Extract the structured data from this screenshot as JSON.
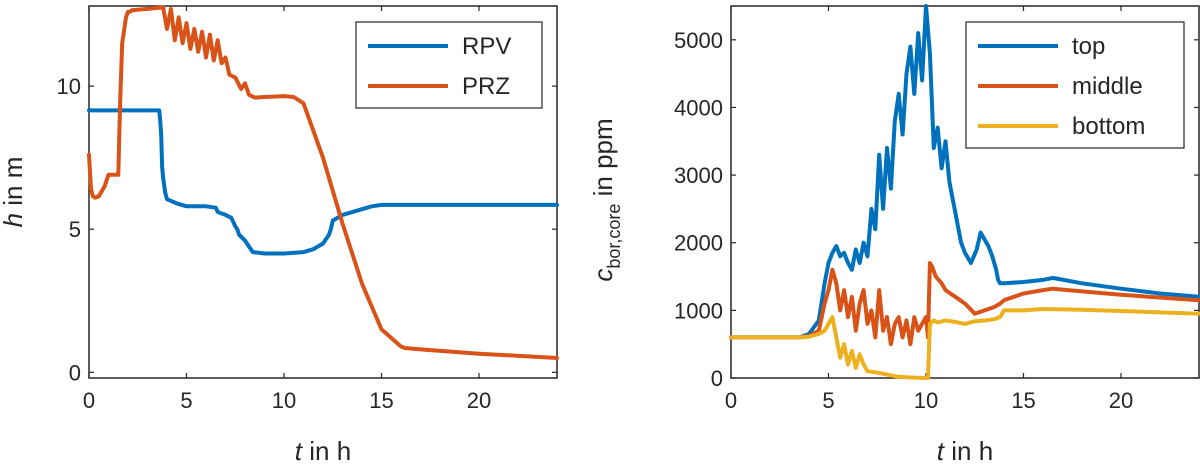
{
  "chart_data": [
    {
      "type": "line",
      "xlabel_italic": "t",
      "xlabel_rest": " in h",
      "ylabel_italic": "h",
      "ylabel_rest": " in m",
      "xlim": [
        0,
        24
      ],
      "ylim": [
        -0.2,
        12.8
      ],
      "xticks": [
        0,
        5,
        10,
        15,
        20
      ],
      "yticks": [
        0,
        5,
        10
      ],
      "legend": "top-right",
      "series": [
        {
          "name": "RPV",
          "color": "#0072BD",
          "x": [
            0,
            3.6,
            3.65,
            3.7,
            3.75,
            3.8,
            3.9,
            4.0,
            4.5,
            5.0,
            6.0,
            6.5,
            6.6,
            7.0,
            7.3,
            7.5,
            7.6,
            7.7,
            8.0,
            8.2,
            8.4,
            9.0,
            10.0,
            11.0,
            11.5,
            12.0,
            12.3,
            12.4,
            12.5,
            13.0,
            14.0,
            14.5,
            15.0,
            20.0,
            24.0
          ],
          "y": [
            9.15,
            9.15,
            8.8,
            8.3,
            7.2,
            6.8,
            6.3,
            6.05,
            5.9,
            5.8,
            5.8,
            5.75,
            5.6,
            5.5,
            5.4,
            5.1,
            5.0,
            4.8,
            4.6,
            4.4,
            4.2,
            4.15,
            4.15,
            4.2,
            4.3,
            4.5,
            4.8,
            5.0,
            5.3,
            5.5,
            5.7,
            5.8,
            5.85,
            5.85,
            5.85
          ]
        },
        {
          "name": "PRZ",
          "color": "#D95319",
          "x": [
            0,
            0.1,
            0.2,
            0.3,
            0.5,
            0.8,
            1.0,
            1.2,
            1.5,
            1.6,
            1.7,
            1.9,
            2.0,
            2.1,
            2.2,
            3.0,
            3.8,
            4.0,
            4.2,
            4.4,
            4.6,
            4.8,
            5.0,
            5.2,
            5.4,
            5.6,
            5.8,
            6.0,
            6.2,
            6.4,
            6.6,
            6.8,
            7.0,
            7.2,
            7.5,
            7.8,
            8.0,
            8.2,
            8.5,
            9.0,
            10.0,
            10.5,
            11.0,
            12.0,
            13.0,
            14.0,
            15.0,
            16.0,
            16.2,
            17.0,
            20.0,
            24.0
          ],
          "y": [
            7.6,
            6.4,
            6.15,
            6.1,
            6.15,
            6.5,
            6.9,
            6.9,
            6.9,
            9.5,
            11.5,
            12.4,
            12.6,
            12.6,
            12.65,
            12.7,
            12.75,
            12.0,
            12.7,
            11.6,
            12.4,
            11.5,
            12.2,
            11.3,
            12.0,
            11.2,
            11.9,
            11.0,
            11.8,
            10.9,
            11.6,
            10.8,
            11.0,
            10.4,
            10.3,
            9.9,
            10.1,
            9.7,
            9.6,
            9.62,
            9.65,
            9.62,
            9.4,
            7.5,
            5.2,
            3.1,
            1.5,
            0.9,
            0.85,
            0.8,
            0.65,
            0.5
          ]
        }
      ]
    },
    {
      "type": "line",
      "xlabel_italic": "t",
      "xlabel_rest": " in h",
      "ylabel_italic": "c",
      "ylabel_sub": "bor,core",
      "ylabel_rest": " in ppm",
      "xlim": [
        0,
        24
      ],
      "ylim": [
        0,
        5500
      ],
      "xticks": [
        0,
        5,
        10,
        15,
        20
      ],
      "yticks": [
        0,
        1000,
        2000,
        3000,
        4000,
        5000
      ],
      "legend": "top-right",
      "series": [
        {
          "name": "top",
          "color": "#0072BD",
          "x": [
            0,
            3.5,
            4.0,
            4.5,
            4.8,
            5.0,
            5.2,
            5.4,
            5.6,
            5.8,
            6.0,
            6.2,
            6.4,
            6.6,
            6.8,
            7.0,
            7.2,
            7.4,
            7.6,
            7.8,
            8.0,
            8.2,
            8.4,
            8.6,
            8.8,
            9.0,
            9.2,
            9.4,
            9.6,
            9.8,
            10.0,
            10.2,
            10.4,
            10.6,
            10.8,
            11.0,
            11.2,
            11.4,
            11.6,
            11.8,
            12.0,
            12.3,
            12.6,
            12.8,
            13.0,
            13.2,
            13.4,
            13.6,
            13.7,
            13.8,
            14.0,
            15.0,
            16.0,
            16.5,
            18.0,
            20.0,
            22.0,
            24.0
          ],
          "y": [
            600,
            600,
            650,
            850,
            1400,
            1700,
            1850,
            1950,
            1800,
            1850,
            1700,
            1600,
            1900,
            1700,
            2000,
            1800,
            2500,
            2200,
            3300,
            2500,
            3400,
            2800,
            3800,
            4200,
            3600,
            4500,
            4900,
            4200,
            5100,
            4400,
            5500,
            4800,
            3400,
            3700,
            3100,
            3500,
            2900,
            2600,
            2300,
            2000,
            1850,
            1700,
            1900,
            2150,
            2050,
            1950,
            1800,
            1600,
            1450,
            1400,
            1400,
            1420,
            1450,
            1480,
            1400,
            1320,
            1250,
            1200
          ]
        },
        {
          "name": "middle",
          "color": "#D95319",
          "x": [
            0,
            3.5,
            4.0,
            4.5,
            4.8,
            5.0,
            5.2,
            5.4,
            5.6,
            5.8,
            6.0,
            6.2,
            6.4,
            6.6,
            6.8,
            7.0,
            7.2,
            7.4,
            7.6,
            7.8,
            8.0,
            8.2,
            8.4,
            8.6,
            8.8,
            9.0,
            9.2,
            9.4,
            9.6,
            9.8,
            10.0,
            10.1,
            10.2,
            10.3,
            10.5,
            10.8,
            11.0,
            11.5,
            12.0,
            12.5,
            13.0,
            13.5,
            13.8,
            14.0,
            15.0,
            16.0,
            16.5,
            18.0,
            20.0,
            24.0
          ],
          "y": [
            600,
            600,
            620,
            700,
            1100,
            1300,
            1600,
            1400,
            1000,
            1300,
            900,
            1200,
            700,
            1100,
            1300,
            800,
            1000,
            600,
            1300,
            700,
            900,
            500,
            800,
            900,
            600,
            850,
            500,
            900,
            700,
            800,
            900,
            600,
            1700,
            1650,
            1500,
            1400,
            1300,
            1200,
            1100,
            950,
            1000,
            1050,
            1100,
            1150,
            1250,
            1300,
            1320,
            1280,
            1230,
            1150
          ]
        },
        {
          "name": "bottom",
          "color": "#EDB120",
          "x": [
            0,
            3.5,
            4.0,
            4.5,
            4.8,
            5.0,
            5.2,
            5.4,
            5.6,
            5.8,
            6.0,
            6.2,
            6.4,
            6.6,
            6.8,
            7.0,
            7.5,
            8.0,
            8.5,
            9.0,
            9.5,
            10.0,
            10.1,
            10.2,
            10.4,
            10.6,
            11.0,
            11.5,
            12.0,
            12.5,
            13.0,
            13.5,
            13.8,
            14.0,
            15.0,
            16.0,
            18.0,
            20.0,
            24.0
          ],
          "y": [
            600,
            600,
            610,
            650,
            700,
            800,
            900,
            600,
            300,
            500,
            200,
            400,
            150,
            350,
            200,
            100,
            80,
            50,
            20,
            10,
            5,
            0,
            0,
            800,
            850,
            820,
            850,
            830,
            800,
            840,
            850,
            870,
            900,
            1000,
            1000,
            1020,
            1010,
            990,
            950
          ]
        }
      ]
    }
  ]
}
